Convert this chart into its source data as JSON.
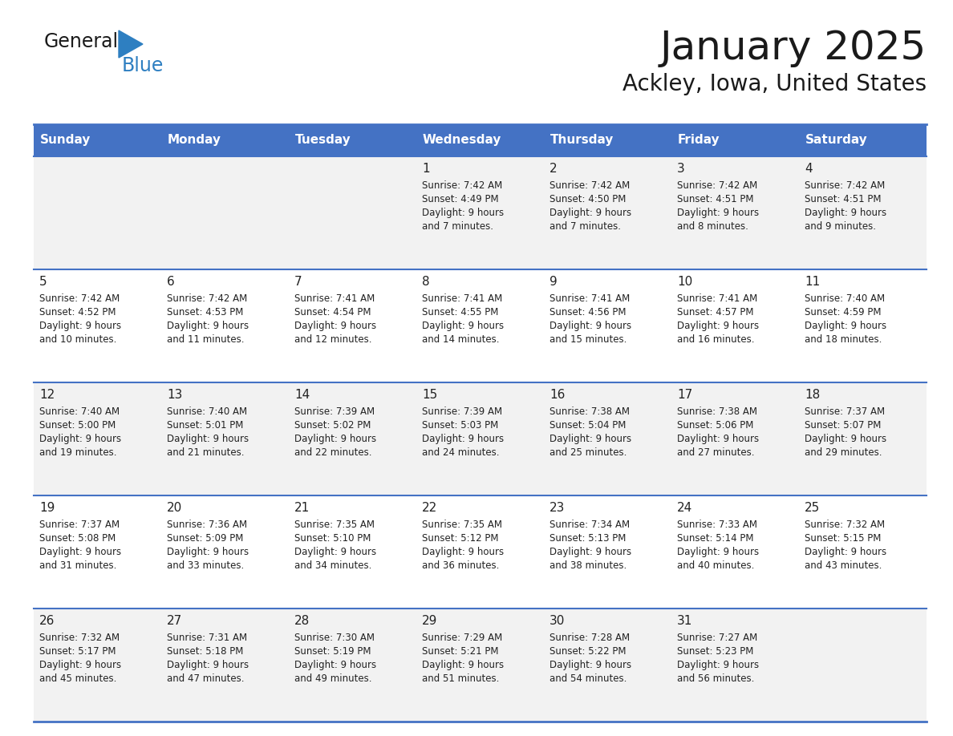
{
  "title": "January 2025",
  "subtitle": "Ackley, Iowa, United States",
  "header_bg": "#4472C4",
  "header_text_color": "#FFFFFF",
  "row_bg_1": "#F2F2F2",
  "row_bg_2": "#FFFFFF",
  "divider_color": "#4472C4",
  "text_color": "#222222",
  "days_of_week": [
    "Sunday",
    "Monday",
    "Tuesday",
    "Wednesday",
    "Thursday",
    "Friday",
    "Saturday"
  ],
  "calendar_data": [
    [
      {
        "day": "",
        "sunrise": "",
        "sunset": "",
        "daylight": ""
      },
      {
        "day": "",
        "sunrise": "",
        "sunset": "",
        "daylight": ""
      },
      {
        "day": "",
        "sunrise": "",
        "sunset": "",
        "daylight": ""
      },
      {
        "day": "1",
        "sunrise": "7:42 AM",
        "sunset": "4:49 PM",
        "daylight": "9 hours and 7 minutes."
      },
      {
        "day": "2",
        "sunrise": "7:42 AM",
        "sunset": "4:50 PM",
        "daylight": "9 hours and 7 minutes."
      },
      {
        "day": "3",
        "sunrise": "7:42 AM",
        "sunset": "4:51 PM",
        "daylight": "9 hours and 8 minutes."
      },
      {
        "day": "4",
        "sunrise": "7:42 AM",
        "sunset": "4:51 PM",
        "daylight": "9 hours and 9 minutes."
      }
    ],
    [
      {
        "day": "5",
        "sunrise": "7:42 AM",
        "sunset": "4:52 PM",
        "daylight": "9 hours and 10 minutes."
      },
      {
        "day": "6",
        "sunrise": "7:42 AM",
        "sunset": "4:53 PM",
        "daylight": "9 hours and 11 minutes."
      },
      {
        "day": "7",
        "sunrise": "7:41 AM",
        "sunset": "4:54 PM",
        "daylight": "9 hours and 12 minutes."
      },
      {
        "day": "8",
        "sunrise": "7:41 AM",
        "sunset": "4:55 PM",
        "daylight": "9 hours and 14 minutes."
      },
      {
        "day": "9",
        "sunrise": "7:41 AM",
        "sunset": "4:56 PM",
        "daylight": "9 hours and 15 minutes."
      },
      {
        "day": "10",
        "sunrise": "7:41 AM",
        "sunset": "4:57 PM",
        "daylight": "9 hours and 16 minutes."
      },
      {
        "day": "11",
        "sunrise": "7:40 AM",
        "sunset": "4:59 PM",
        "daylight": "9 hours and 18 minutes."
      }
    ],
    [
      {
        "day": "12",
        "sunrise": "7:40 AM",
        "sunset": "5:00 PM",
        "daylight": "9 hours and 19 minutes."
      },
      {
        "day": "13",
        "sunrise": "7:40 AM",
        "sunset": "5:01 PM",
        "daylight": "9 hours and 21 minutes."
      },
      {
        "day": "14",
        "sunrise": "7:39 AM",
        "sunset": "5:02 PM",
        "daylight": "9 hours and 22 minutes."
      },
      {
        "day": "15",
        "sunrise": "7:39 AM",
        "sunset": "5:03 PM",
        "daylight": "9 hours and 24 minutes."
      },
      {
        "day": "16",
        "sunrise": "7:38 AM",
        "sunset": "5:04 PM",
        "daylight": "9 hours and 25 minutes."
      },
      {
        "day": "17",
        "sunrise": "7:38 AM",
        "sunset": "5:06 PM",
        "daylight": "9 hours and 27 minutes."
      },
      {
        "day": "18",
        "sunrise": "7:37 AM",
        "sunset": "5:07 PM",
        "daylight": "9 hours and 29 minutes."
      }
    ],
    [
      {
        "day": "19",
        "sunrise": "7:37 AM",
        "sunset": "5:08 PM",
        "daylight": "9 hours and 31 minutes."
      },
      {
        "day": "20",
        "sunrise": "7:36 AM",
        "sunset": "5:09 PM",
        "daylight": "9 hours and 33 minutes."
      },
      {
        "day": "21",
        "sunrise": "7:35 AM",
        "sunset": "5:10 PM",
        "daylight": "9 hours and 34 minutes."
      },
      {
        "day": "22",
        "sunrise": "7:35 AM",
        "sunset": "5:12 PM",
        "daylight": "9 hours and 36 minutes."
      },
      {
        "day": "23",
        "sunrise": "7:34 AM",
        "sunset": "5:13 PM",
        "daylight": "9 hours and 38 minutes."
      },
      {
        "day": "24",
        "sunrise": "7:33 AM",
        "sunset": "5:14 PM",
        "daylight": "9 hours and 40 minutes."
      },
      {
        "day": "25",
        "sunrise": "7:32 AM",
        "sunset": "5:15 PM",
        "daylight": "9 hours and 43 minutes."
      }
    ],
    [
      {
        "day": "26",
        "sunrise": "7:32 AM",
        "sunset": "5:17 PM",
        "daylight": "9 hours and 45 minutes."
      },
      {
        "day": "27",
        "sunrise": "7:31 AM",
        "sunset": "5:18 PM",
        "daylight": "9 hours and 47 minutes."
      },
      {
        "day": "28",
        "sunrise": "7:30 AM",
        "sunset": "5:19 PM",
        "daylight": "9 hours and 49 minutes."
      },
      {
        "day": "29",
        "sunrise": "7:29 AM",
        "sunset": "5:21 PM",
        "daylight": "9 hours and 51 minutes."
      },
      {
        "day": "30",
        "sunrise": "7:28 AM",
        "sunset": "5:22 PM",
        "daylight": "9 hours and 54 minutes."
      },
      {
        "day": "31",
        "sunrise": "7:27 AM",
        "sunset": "5:23 PM",
        "daylight": "9 hours and 56 minutes."
      },
      {
        "day": "",
        "sunrise": "",
        "sunset": "",
        "daylight": ""
      }
    ]
  ],
  "logo_general_color": "#1a1a1a",
  "logo_blue_color": "#2e7fc1",
  "logo_triangle_color": "#2e7fc1"
}
